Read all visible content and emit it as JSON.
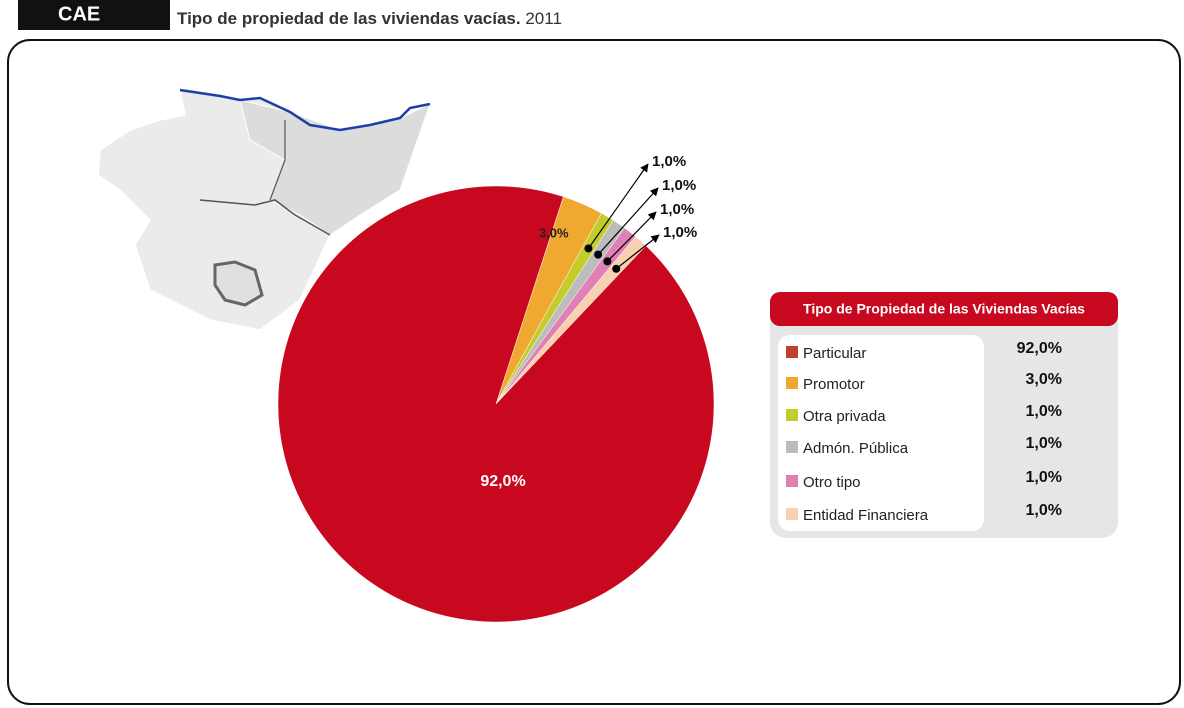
{
  "chart_data": {
    "type": "pie",
    "tag": "CAE",
    "title": "Tipo de propiedad de las viviendas vacías.",
    "subtitle": "2011",
    "legend_title": "Tipo de Propiedad de las Viviendas Vacías",
    "categories": [
      "Particular",
      "Promotor",
      "Otra privada",
      "Admón. Pública",
      "Otro tipo",
      "Entidad Financiera"
    ],
    "values": [
      92,
      3,
      1,
      1,
      1,
      1
    ],
    "value_labels": [
      "92,0%",
      "3,0%",
      "1,0%",
      "1,0%",
      "1,0%",
      "1,0%"
    ],
    "colors": [
      "#c8081e",
      "#f0a830",
      "#c4cc2c",
      "#bcbcbc",
      "#e080b4",
      "#f8d2b0"
    ]
  }
}
